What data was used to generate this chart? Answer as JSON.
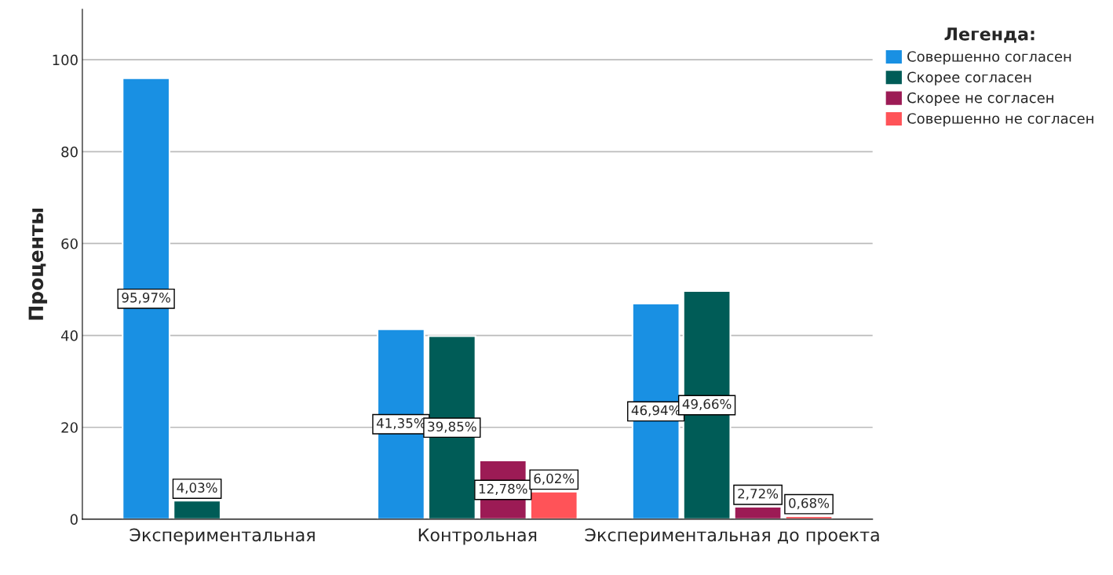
{
  "chart_data": {
    "type": "bar",
    "ylabel": "Проценты",
    "legend_title": "Легенда:",
    "categories": [
      "Экспериментальная",
      "Контрольная",
      "Экспериментальная до проекта"
    ],
    "series": [
      {
        "name": "Совершенно согласен",
        "color": "#1990e3",
        "values": [
          95.97,
          41.35,
          46.94
        ],
        "value_labels": [
          "95,97%",
          "41,35%",
          "46,94%"
        ]
      },
      {
        "name": "Скорее согласен",
        "color": "#005c57",
        "values": [
          4.03,
          39.85,
          49.66
        ],
        "value_labels": [
          "4,03%",
          "39,85%",
          "49,66%"
        ]
      },
      {
        "name": "Скорее не согласен",
        "color": "#9c1b55",
        "values": [
          null,
          12.78,
          2.72
        ],
        "value_labels": [
          null,
          "12,78%",
          "2,72%"
        ]
      },
      {
        "name": "Совершенно не согласен",
        "color": "#ff5358",
        "values": [
          null,
          6.02,
          0.68
        ],
        "value_labels": [
          null,
          "6,02%",
          "0,68%"
        ]
      }
    ],
    "ylim": [
      0,
      111
    ],
    "yticks": [
      0,
      20,
      40,
      60,
      80,
      100
    ],
    "grid": "y",
    "legend": "top right"
  }
}
